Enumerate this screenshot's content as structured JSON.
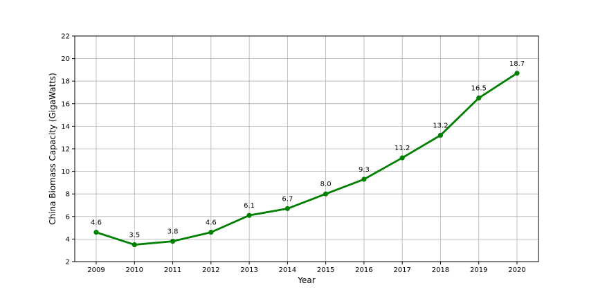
{
  "chart_data": {
    "type": "line",
    "title": "",
    "xlabel": "Year",
    "ylabel": "China Biomass Capacity (GigaWatts)",
    "categories": [
      "2009",
      "2010",
      "2011",
      "2012",
      "2013",
      "2014",
      "2015",
      "2016",
      "2017",
      "2018",
      "2019",
      "2020"
    ],
    "series": [
      {
        "values": [
          4.6,
          3.5,
          3.8,
          4.6,
          6.1,
          6.7,
          8.0,
          9.3,
          11.2,
          13.2,
          16.5,
          18.7
        ],
        "data_labels": [
          "4.6",
          "3.5",
          "3.8",
          "4.6",
          "6.1",
          "6.7",
          "8.0",
          "9.3",
          "11.2",
          "13.2",
          "16.5",
          "18.7"
        ],
        "color": "#008000",
        "marker": "circle"
      }
    ],
    "ylim": [
      2,
      22
    ],
    "yticks": [
      2,
      4,
      6,
      8,
      10,
      12,
      14,
      16,
      18,
      20,
      22
    ],
    "ytick_labels": [
      "2",
      "4",
      "6",
      "8",
      "10",
      "12",
      "14",
      "16",
      "18",
      "20",
      "22"
    ],
    "grid": true,
    "legend": "none"
  }
}
